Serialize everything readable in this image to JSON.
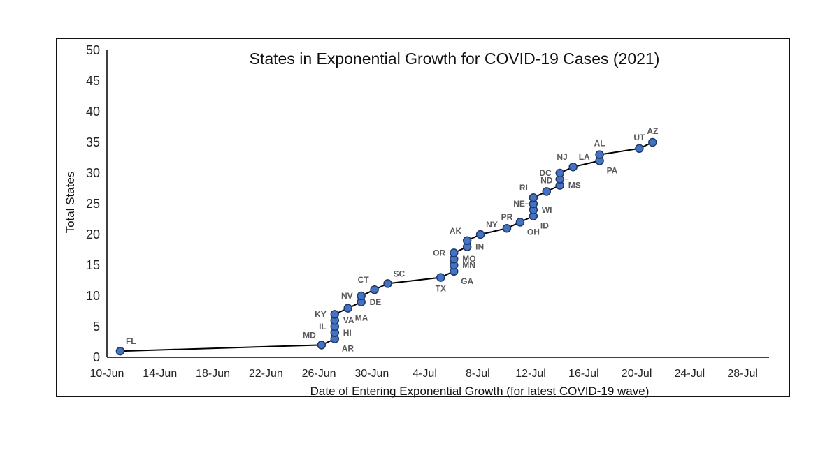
{
  "chart_data": {
    "type": "line",
    "title": "States in Exponential Growth for COVID-19 Cases (2021)",
    "xlabel": "Date of Entering Exponential Growth (for latest COVID-19 wave)",
    "ylabel": "Total States",
    "ylim": [
      0,
      50
    ],
    "y_ticks": [
      0,
      5,
      10,
      15,
      20,
      25,
      30,
      35,
      40,
      45,
      50
    ],
    "x_ticks": [
      "10-Jun",
      "14-Jun",
      "18-Jun",
      "22-Jun",
      "26-Jun",
      "30-Jun",
      "4-Jul",
      "8-Jul",
      "12-Jul",
      "16-Jul",
      "20-Jul",
      "24-Jul",
      "28-Jul"
    ],
    "x_tick_day_offsets": [
      0,
      4,
      8,
      12,
      16,
      20,
      24,
      28,
      32,
      36,
      40,
      44,
      48
    ],
    "x_range_days": [
      0,
      50
    ],
    "x_unit": "days since 10-Jun",
    "colors": {
      "line": "#000000",
      "marker_fill": "#4472C4",
      "marker_stroke": "#1F3864",
      "label": "#595959"
    },
    "points": [
      {
        "label": "FL",
        "day": 1.0,
        "total": 1
      },
      {
        "label": "MD",
        "day": 16.2,
        "total": 2
      },
      {
        "label": "AR",
        "day": 17.2,
        "total": 3
      },
      {
        "label": "HI",
        "day": 17.2,
        "total": 4
      },
      {
        "label": "IL",
        "day": 17.2,
        "total": 5
      },
      {
        "label": "VA",
        "day": 17.2,
        "total": 6
      },
      {
        "label": "KY",
        "day": 17.2,
        "total": 7
      },
      {
        "label": "MA",
        "day": 18.2,
        "total": 8
      },
      {
        "label": "DE",
        "day": 19.2,
        "total": 9
      },
      {
        "label": "NV",
        "day": 19.2,
        "total": 10
      },
      {
        "label": "CT",
        "day": 20.2,
        "total": 11
      },
      {
        "label": "SC",
        "day": 21.2,
        "total": 12
      },
      {
        "label": "TX",
        "day": 25.2,
        "total": 13
      },
      {
        "label": "GA",
        "day": 26.2,
        "total": 14
      },
      {
        "label": "MN",
        "day": 26.2,
        "total": 15
      },
      {
        "label": "MO",
        "day": 26.2,
        "total": 16
      },
      {
        "label": "OR",
        "day": 26.2,
        "total": 17
      },
      {
        "label": "IN",
        "day": 27.2,
        "total": 18
      },
      {
        "label": "AK",
        "day": 27.2,
        "total": 19
      },
      {
        "label": "NY",
        "day": 28.2,
        "total": 20
      },
      {
        "label": "PR",
        "day": 30.2,
        "total": 21
      },
      {
        "label": "OH",
        "day": 31.2,
        "total": 22
      },
      {
        "label": "ID",
        "day": 32.2,
        "total": 23
      },
      {
        "label": "WI",
        "day": 32.2,
        "total": 24
      },
      {
        "label": "NE",
        "day": 32.2,
        "total": 25
      },
      {
        "label": "RI",
        "day": 32.2,
        "total": 26
      },
      {
        "label": "ND",
        "day": 33.2,
        "total": 27
      },
      {
        "label": "MS",
        "day": 34.2,
        "total": 28
      },
      {
        "label": "",
        "day": 34.2,
        "total": 29
      },
      {
        "label": "DC",
        "day": 34.2,
        "total": 30
      },
      {
        "label": "NJ",
        "day": 35.2,
        "total": 31
      },
      {
        "label": "PA",
        "day": 37.2,
        "total": 32
      },
      {
        "label": "AL",
        "day": 37.2,
        "total": 33
      },
      {
        "label": "UT",
        "day": 40.2,
        "total": 34
      },
      {
        "label": "AZ",
        "day": 41.2,
        "total": 35
      }
    ],
    "annotations": [
      {
        "text": "FL",
        "x": 1.0,
        "y": 1,
        "anchor": "above-right"
      },
      {
        "text": "MD",
        "x": 16.2,
        "y": 2,
        "anchor": "above-left"
      },
      {
        "text": "AR",
        "x": 17.2,
        "y": 3,
        "anchor": "below-right"
      },
      {
        "text": "HI",
        "x": 17.2,
        "y": 4,
        "anchor": "right"
      },
      {
        "text": "IL",
        "x": 17.2,
        "y": 5,
        "anchor": "left"
      },
      {
        "text": "VA",
        "x": 17.2,
        "y": 6,
        "anchor": "right"
      },
      {
        "text": "KY",
        "x": 17.2,
        "y": 7,
        "anchor": "left"
      },
      {
        "text": "MA",
        "x": 18.2,
        "y": 8,
        "anchor": "below-right"
      },
      {
        "text": "DE",
        "x": 19.2,
        "y": 9,
        "anchor": "right"
      },
      {
        "text": "NV",
        "x": 19.2,
        "y": 10,
        "anchor": "left"
      },
      {
        "text": "CT",
        "x": 20.2,
        "y": 11,
        "anchor": "above-left"
      },
      {
        "text": "SC",
        "x": 21.2,
        "y": 12,
        "anchor": "above-right"
      },
      {
        "text": "TX",
        "x": 25.2,
        "y": 13,
        "anchor": "below"
      },
      {
        "text": "GA",
        "x": 26.2,
        "y": 14,
        "anchor": "below-right"
      },
      {
        "text": "MN",
        "x": 26.2,
        "y": 15,
        "anchor": "right"
      },
      {
        "text": "MO",
        "x": 26.2,
        "y": 16,
        "anchor": "right"
      },
      {
        "text": "OR",
        "x": 26.2,
        "y": 17,
        "anchor": "left"
      },
      {
        "text": "IN",
        "x": 27.2,
        "y": 18,
        "anchor": "right"
      },
      {
        "text": "AK",
        "x": 27.2,
        "y": 19,
        "anchor": "above-left"
      },
      {
        "text": "NY",
        "x": 28.2,
        "y": 20,
        "anchor": "above-right"
      },
      {
        "text": "PR",
        "x": 30.2,
        "y": 21,
        "anchor": "above"
      },
      {
        "text": "OH",
        "x": 31.2,
        "y": 22,
        "anchor": "below-right"
      },
      {
        "text": "ID",
        "x": 32.2,
        "y": 23,
        "anchor": "below-right"
      },
      {
        "text": "WI",
        "x": 32.2,
        "y": 24,
        "anchor": "right"
      },
      {
        "text": "NE",
        "x": 32.2,
        "y": 25,
        "anchor": "left"
      },
      {
        "text": "RI",
        "x": 32.2,
        "y": 26,
        "anchor": "above-left"
      },
      {
        "text": "ND",
        "x": 33.2,
        "y": 27,
        "anchor": "above"
      },
      {
        "text": "MS",
        "x": 34.2,
        "y": 28,
        "anchor": "right"
      },
      {
        "text": "DC",
        "x": 34.2,
        "y": 30,
        "anchor": "left"
      },
      {
        "text": "NJ",
        "x": 35.2,
        "y": 31,
        "anchor": "above-left"
      },
      {
        "text": "LA",
        "x": 35.2,
        "y": 31,
        "anchor": "above-right"
      },
      {
        "text": "AL",
        "x": 37.2,
        "y": 33,
        "anchor": "above"
      },
      {
        "text": "PA",
        "x": 37.2,
        "y": 32,
        "anchor": "below-right"
      },
      {
        "text": "UT",
        "x": 40.2,
        "y": 34,
        "anchor": "above"
      },
      {
        "text": "AZ",
        "x": 41.2,
        "y": 35,
        "anchor": "above"
      }
    ]
  }
}
